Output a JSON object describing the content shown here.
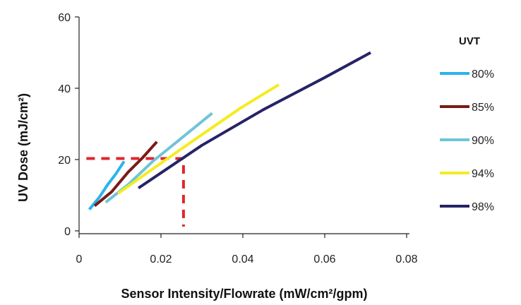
{
  "chart_data": {
    "type": "line",
    "title": "",
    "xlabel": "Sensor Intensity/Flowrate (mW/cm²/gpm)",
    "ylabel": "UV Dose (mJ/cm²)",
    "xlim": [
      0,
      0.08
    ],
    "ylim": [
      0,
      60
    ],
    "x_ticks": [
      {
        "value": 0,
        "label": "0"
      },
      {
        "value": 0.02,
        "label": "0.02"
      },
      {
        "value": 0.04,
        "label": "0.04"
      },
      {
        "value": 0.06,
        "label": "0.06"
      },
      {
        "value": 0.08,
        "label": "0.08"
      }
    ],
    "y_ticks": [
      {
        "value": 0,
        "label": "0"
      },
      {
        "value": 20,
        "label": "20"
      },
      {
        "value": 40,
        "label": "40"
      },
      {
        "value": 60,
        "label": "60"
      }
    ],
    "grid": false,
    "legend": {
      "title": "UVT",
      "position": "right"
    },
    "series": [
      {
        "name": "80%",
        "color": "#2ab4ea",
        "points": [
          [
            0.0025,
            6
          ],
          [
            0.005,
            9.5
          ],
          [
            0.007,
            13
          ],
          [
            0.009,
            16
          ],
          [
            0.011,
            19.5
          ]
        ]
      },
      {
        "name": "85%",
        "color": "#7a1a17",
        "points": [
          [
            0.0038,
            7
          ],
          [
            0.008,
            11
          ],
          [
            0.012,
            16.5
          ],
          [
            0.0155,
            20.5
          ],
          [
            0.019,
            25
          ]
        ]
      },
      {
        "name": "90%",
        "color": "#6ec5d7",
        "points": [
          [
            0.0065,
            8
          ],
          [
            0.012,
            13
          ],
          [
            0.018,
            19.5
          ],
          [
            0.025,
            26
          ],
          [
            0.0325,
            33
          ]
        ]
      },
      {
        "name": "94%",
        "color": "#f4ec22",
        "points": [
          [
            0.0095,
            10.5
          ],
          [
            0.02,
            19
          ],
          [
            0.03,
            27
          ],
          [
            0.0395,
            34.5
          ],
          [
            0.0488,
            41
          ]
        ]
      },
      {
        "name": "98%",
        "color": "#262366",
        "points": [
          [
            0.0145,
            12
          ],
          [
            0.03,
            24
          ],
          [
            0.045,
            34
          ],
          [
            0.06,
            43
          ],
          [
            0.0712,
            50
          ]
        ]
      }
    ],
    "reference_line": {
      "color": "#e0262b",
      "style": "dashed",
      "points": [
        [
          0.0018,
          20.3
        ],
        [
          0.0255,
          20.3
        ],
        [
          0.0255,
          1.2
        ]
      ]
    }
  }
}
